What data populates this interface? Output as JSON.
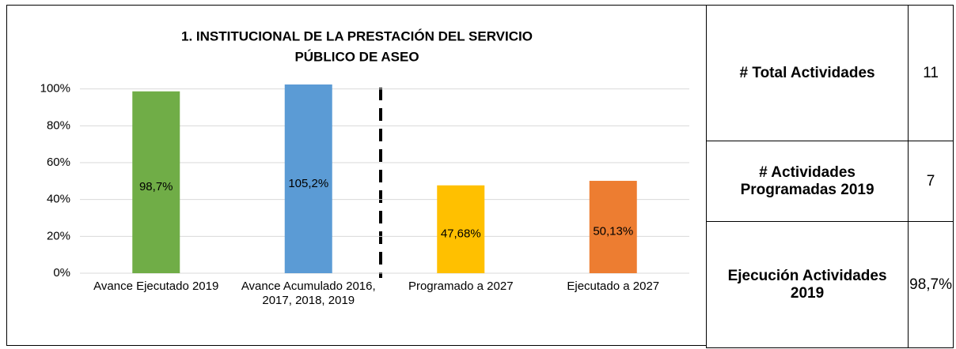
{
  "chart_data": {
    "type": "bar",
    "title": [
      "1. INSTITUCIONAL DE LA PRESTACIÓN DEL SERVICIO",
      "PÚBLICO DE ASEO"
    ],
    "categories": [
      "Avance Ejecutado 2019",
      "Avance Acumulado 2016, 2017, 2018, 2019",
      "Programado a 2027",
      "Ejecutado a 2027"
    ],
    "values": [
      98.7,
      105.2,
      47.68,
      50.13
    ],
    "value_labels": [
      "98,7%",
      "105,2%",
      "47,68%",
      "50,13%"
    ],
    "colors": [
      "#70ad47",
      "#5b9bd5",
      "#ffc000",
      "#ed7d31"
    ],
    "ylim": [
      0,
      102
    ],
    "yticks": [
      {
        "value": 0,
        "label": "0%"
      },
      {
        "value": 20,
        "label": "20%"
      },
      {
        "value": 40,
        "label": "40%"
      },
      {
        "value": 60,
        "label": "60%"
      },
      {
        "value": 80,
        "label": "80%"
      },
      {
        "value": 100,
        "label": "100%"
      }
    ],
    "grid": true
  },
  "table": {
    "rows": [
      [
        "# Total Actividades",
        "11"
      ],
      [
        "# Actividades Programadas 2019",
        "7"
      ],
      [
        "Ejecución Actividades 2019",
        "98,7%"
      ]
    ]
  }
}
